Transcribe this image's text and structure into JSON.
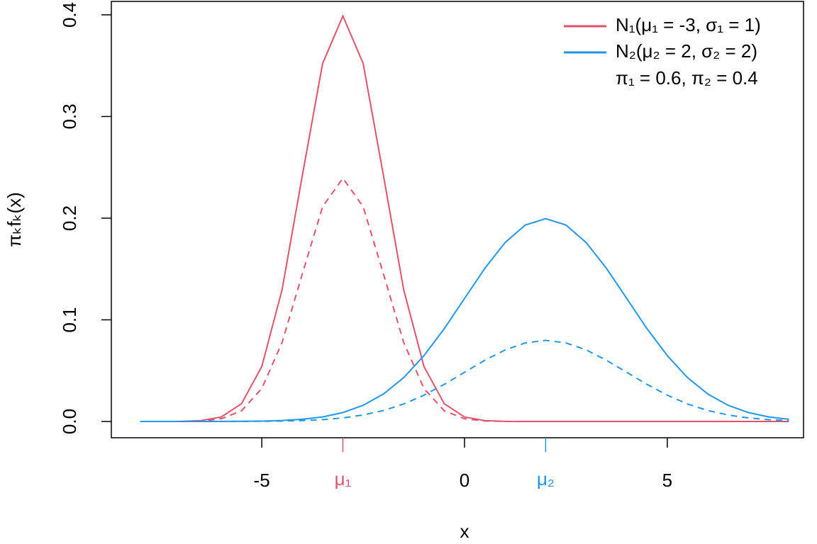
{
  "chart_data": {
    "type": "line",
    "x_label": "x",
    "y_label": "πₖfₖ(x)",
    "x": [
      -8,
      -7.5,
      -7,
      -6.5,
      -6,
      -5.5,
      -5,
      -4.5,
      -4,
      -3.5,
      -3,
      -2.5,
      -2,
      -1.5,
      -1,
      -0.5,
      0,
      0.5,
      1,
      1.5,
      2,
      2.5,
      3,
      3.5,
      4,
      4.5,
      5,
      5.5,
      6,
      6.5,
      7,
      7.5,
      8
    ],
    "series": [
      {
        "name": "N₁(μ₁ = -3, σ₁ = 1)",
        "color": "#DF536B",
        "dashed": false,
        "values": [
          0,
          0,
          0.0001,
          0.0009,
          0.0044,
          0.0175,
          0.054,
          0.1295,
          0.242,
          0.3521,
          0.3989,
          0.3521,
          0.242,
          0.1295,
          0.054,
          0.0175,
          0.0044,
          0.0009,
          0.0001,
          0,
          0,
          0,
          0,
          0,
          0,
          0,
          0,
          0,
          0,
          0,
          0,
          0,
          0
        ]
      },
      {
        "color": "#DF536B",
        "dashed": true,
        "values": [
          0,
          0,
          0.0001,
          0.0005,
          0.0027,
          0.0105,
          0.0324,
          0.0777,
          0.1452,
          0.2113,
          0.2393,
          0.2113,
          0.1452,
          0.0777,
          0.0324,
          0.0105,
          0.0027,
          0.0005,
          0.0001,
          0,
          0,
          0,
          0,
          0,
          0,
          0,
          0,
          0,
          0,
          0,
          0,
          0,
          0
        ]
      },
      {
        "name": "N₂(μ₂ = 2, σ₂ = 2)",
        "color": "#2297E6",
        "dashed": false,
        "values": [
          0,
          0,
          0,
          0,
          0.0001,
          0.0002,
          0.0004,
          0.001,
          0.0022,
          0.0045,
          0.0088,
          0.0159,
          0.027,
          0.0431,
          0.0648,
          0.0913,
          0.121,
          0.1506,
          0.176,
          0.1933,
          0.1995,
          0.1933,
          0.176,
          0.1506,
          0.121,
          0.0913,
          0.0648,
          0.0431,
          0.027,
          0.0159,
          0.0088,
          0.0045,
          0.0022
        ]
      },
      {
        "color": "#2297E6",
        "dashed": true,
        "values": [
          0,
          0,
          0,
          0,
          0,
          0.0001,
          0.0002,
          0.0004,
          0.0009,
          0.0018,
          0.0035,
          0.0064,
          0.0108,
          0.0172,
          0.0259,
          0.0365,
          0.0484,
          0.0602,
          0.0704,
          0.0773,
          0.0798,
          0.0773,
          0.0704,
          0.0602,
          0.0484,
          0.0365,
          0.0259,
          0.0172,
          0.0108,
          0.0064,
          0.0035,
          0.0018,
          0.0009
        ]
      }
    ],
    "legend_note": "π₁ = 0.6, π₂ = 0.4",
    "legend_position": "top-right",
    "x_markers": [
      {
        "text": "μ₁",
        "x": -3,
        "color": "#DF536B"
      },
      {
        "text": "μ₂",
        "x": 2,
        "color": "#2297E6"
      }
    ],
    "xlim": [
      -8.71,
      8.36
    ],
    "xticks": [
      -5,
      0,
      5
    ],
    "ylim": [
      -0.016,
      0.4132
    ],
    "yticks": [
      {
        "value": 0,
        "label": "0.0"
      },
      0.1,
      0.2,
      0.3,
      0.4
    ]
  }
}
